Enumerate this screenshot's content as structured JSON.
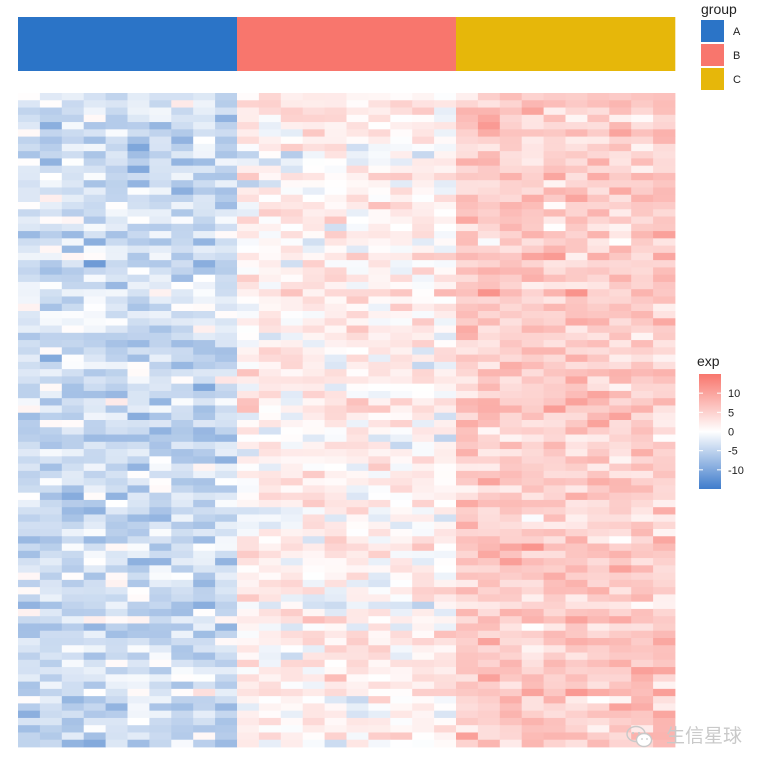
{
  "chart_data": {
    "type": "heatmap",
    "rows": 90,
    "columns": 30,
    "column_groups": [
      "A",
      "A",
      "A",
      "A",
      "A",
      "A",
      "A",
      "A",
      "A",
      "A",
      "B",
      "B",
      "B",
      "B",
      "B",
      "B",
      "B",
      "B",
      "B",
      "B",
      "C",
      "C",
      "C",
      "C",
      "C",
      "C",
      "C",
      "C",
      "C",
      "C"
    ],
    "group_means": {
      "A": -3.5,
      "B": 1.5,
      "C": 5.5
    },
    "value_range": [
      -15,
      15
    ],
    "color_scale": {
      "low": "#2f6fc4",
      "mid": "#ffffff",
      "high": "#f8766d"
    },
    "annotation_legend": {
      "title": "group",
      "items": [
        {
          "label": "A",
          "color": "#2b74c7"
        },
        {
          "label": "B",
          "color": "#f8766d"
        },
        {
          "label": "C",
          "color": "#e6b70a"
        }
      ]
    },
    "color_legend": {
      "title": "exp",
      "ticks": [
        {
          "label": "10",
          "value": 10
        },
        {
          "label": "5",
          "value": 5
        },
        {
          "label": "0",
          "value": 0
        },
        {
          "label": "-5",
          "value": -5
        },
        {
          "label": "-10",
          "value": -10
        }
      ]
    }
  },
  "watermark": {
    "text": "生信星球"
  }
}
